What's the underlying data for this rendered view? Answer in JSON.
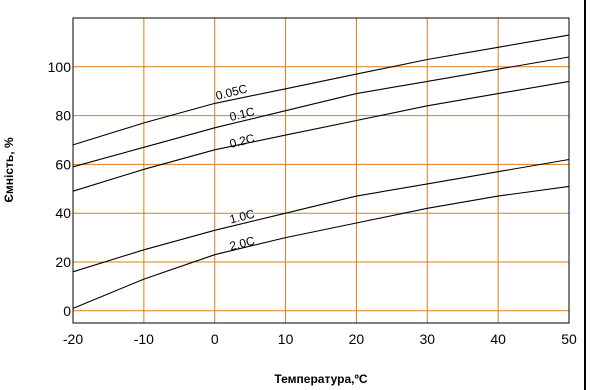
{
  "chart_data": {
    "type": "line",
    "xlabel": "Температура,ºC",
    "ylabel": "Ємність, %",
    "xlim": [
      -20,
      50
    ],
    "ylim": [
      -5,
      120
    ],
    "x_ticks": [
      "-20",
      "-10",
      "0",
      "10",
      "20",
      "30",
      "40",
      "50"
    ],
    "y_ticks": [
      "0",
      "20",
      "40",
      "60",
      "80",
      "100"
    ],
    "grid": true,
    "colors": {
      "grid": "#e07b1f",
      "line": "#000000",
      "frame": "#000000"
    },
    "series": [
      {
        "name": "0.05C",
        "x": [
          -20,
          -10,
          0,
          10,
          20,
          30,
          40,
          50
        ],
        "y": [
          68,
          77,
          85,
          91,
          97,
          103,
          108,
          113
        ]
      },
      {
        "name": "0.1C",
        "x": [
          -20,
          -10,
          0,
          10,
          20,
          30,
          40,
          50
        ],
        "y": [
          59,
          67,
          75,
          82,
          89,
          94,
          99,
          104
        ]
      },
      {
        "name": "0.2C",
        "x": [
          -20,
          -10,
          0,
          10,
          20,
          30,
          40,
          50
        ],
        "y": [
          49,
          58,
          66,
          72,
          78,
          84,
          89,
          94
        ]
      },
      {
        "name": "1.0C",
        "x": [
          -20,
          -10,
          0,
          10,
          20,
          30,
          40,
          50
        ],
        "y": [
          16,
          25,
          33,
          40,
          47,
          52,
          57,
          62
        ]
      },
      {
        "name": "2.0C",
        "x": [
          -20,
          -10,
          0,
          10,
          20,
          30,
          40,
          50
        ],
        "y": [
          1,
          13,
          23,
          30,
          36,
          42,
          47,
          51
        ]
      }
    ],
    "labels": [
      {
        "text": "0.05C",
        "x": 2.5,
        "y": 88
      },
      {
        "text": "0.1C",
        "x": 4,
        "y": 79
      },
      {
        "text": "0.2C",
        "x": 4,
        "y": 68
      },
      {
        "text": "1.0C",
        "x": 4,
        "y": 37
      },
      {
        "text": "2.0C",
        "x": 4,
        "y": 26
      }
    ]
  }
}
